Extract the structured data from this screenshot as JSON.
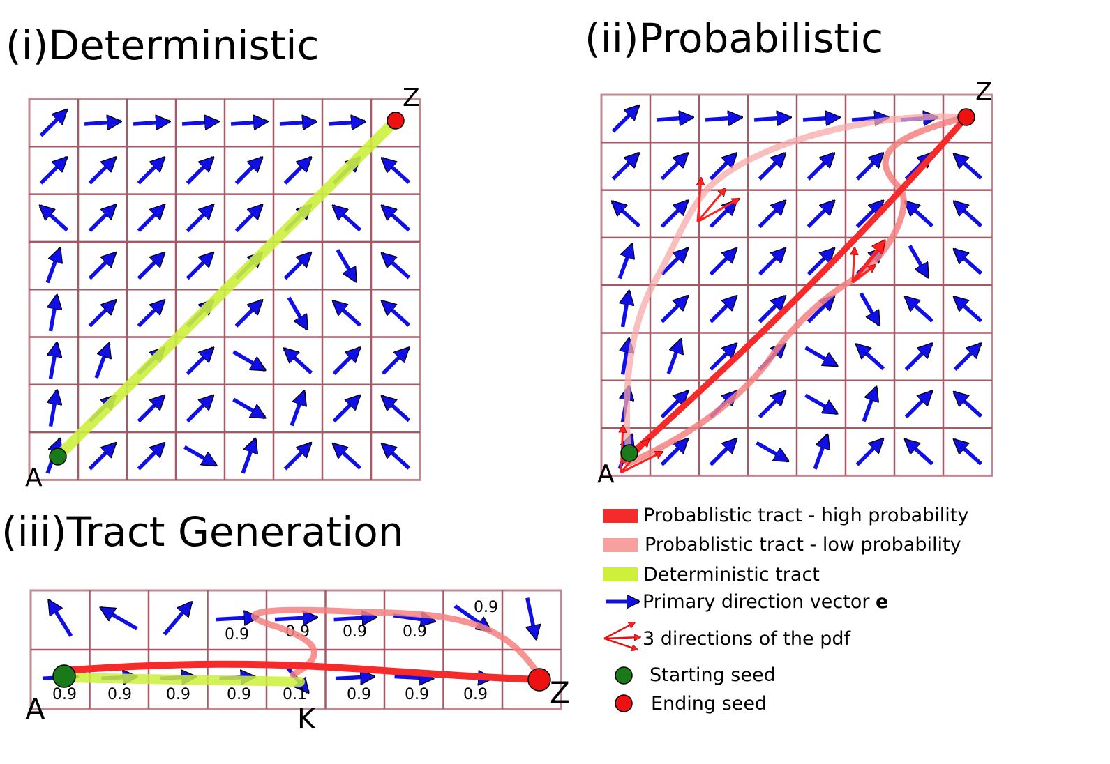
{
  "panels": {
    "deterministic": {
      "title": "(i)Deterministic",
      "start_label": "A",
      "end_label": "Z"
    },
    "probabilistic": {
      "title": "(ii)Probabilistic",
      "start_label": "A",
      "end_label": "Z"
    },
    "tract_generation": {
      "title": "(iii)Tract Generation",
      "start_label": "A",
      "end_label": "Z",
      "mid_label": "K",
      "top_row_values": [
        "0.9",
        "0.9",
        "0.9",
        "0.9",
        "0.9"
      ],
      "bottom_row_values": [
        "0.9",
        "0.9",
        "0.9",
        "0.9",
        "0.1",
        "0.9",
        "0.9",
        "0.9"
      ]
    }
  },
  "legend": {
    "items": [
      {
        "label": "Probablistic tract - high probability",
        "color": "#f52a2a"
      },
      {
        "label": "Probablistic tract - low probability",
        "color": "#f7a0a0"
      },
      {
        "label": "Deterministic tract",
        "color": "#ccf03c"
      },
      {
        "label": "Primary direction vector ",
        "bold_suffix": "e",
        "color": "#1010e6"
      },
      {
        "label": "3 directions of the pdf",
        "color": "#e81010"
      },
      {
        "label": "Starting seed",
        "color": "#1a7a1a"
      },
      {
        "label": "Ending seed",
        "color": "#ee1111"
      }
    ]
  },
  "colors": {
    "grid": "#a35a66",
    "arrow": "#1010e6",
    "high": "#f52a2a",
    "low": "#f7a8a8",
    "det": "#ccf03c",
    "start": "#1a7a1a",
    "end": "#ee1111"
  }
}
